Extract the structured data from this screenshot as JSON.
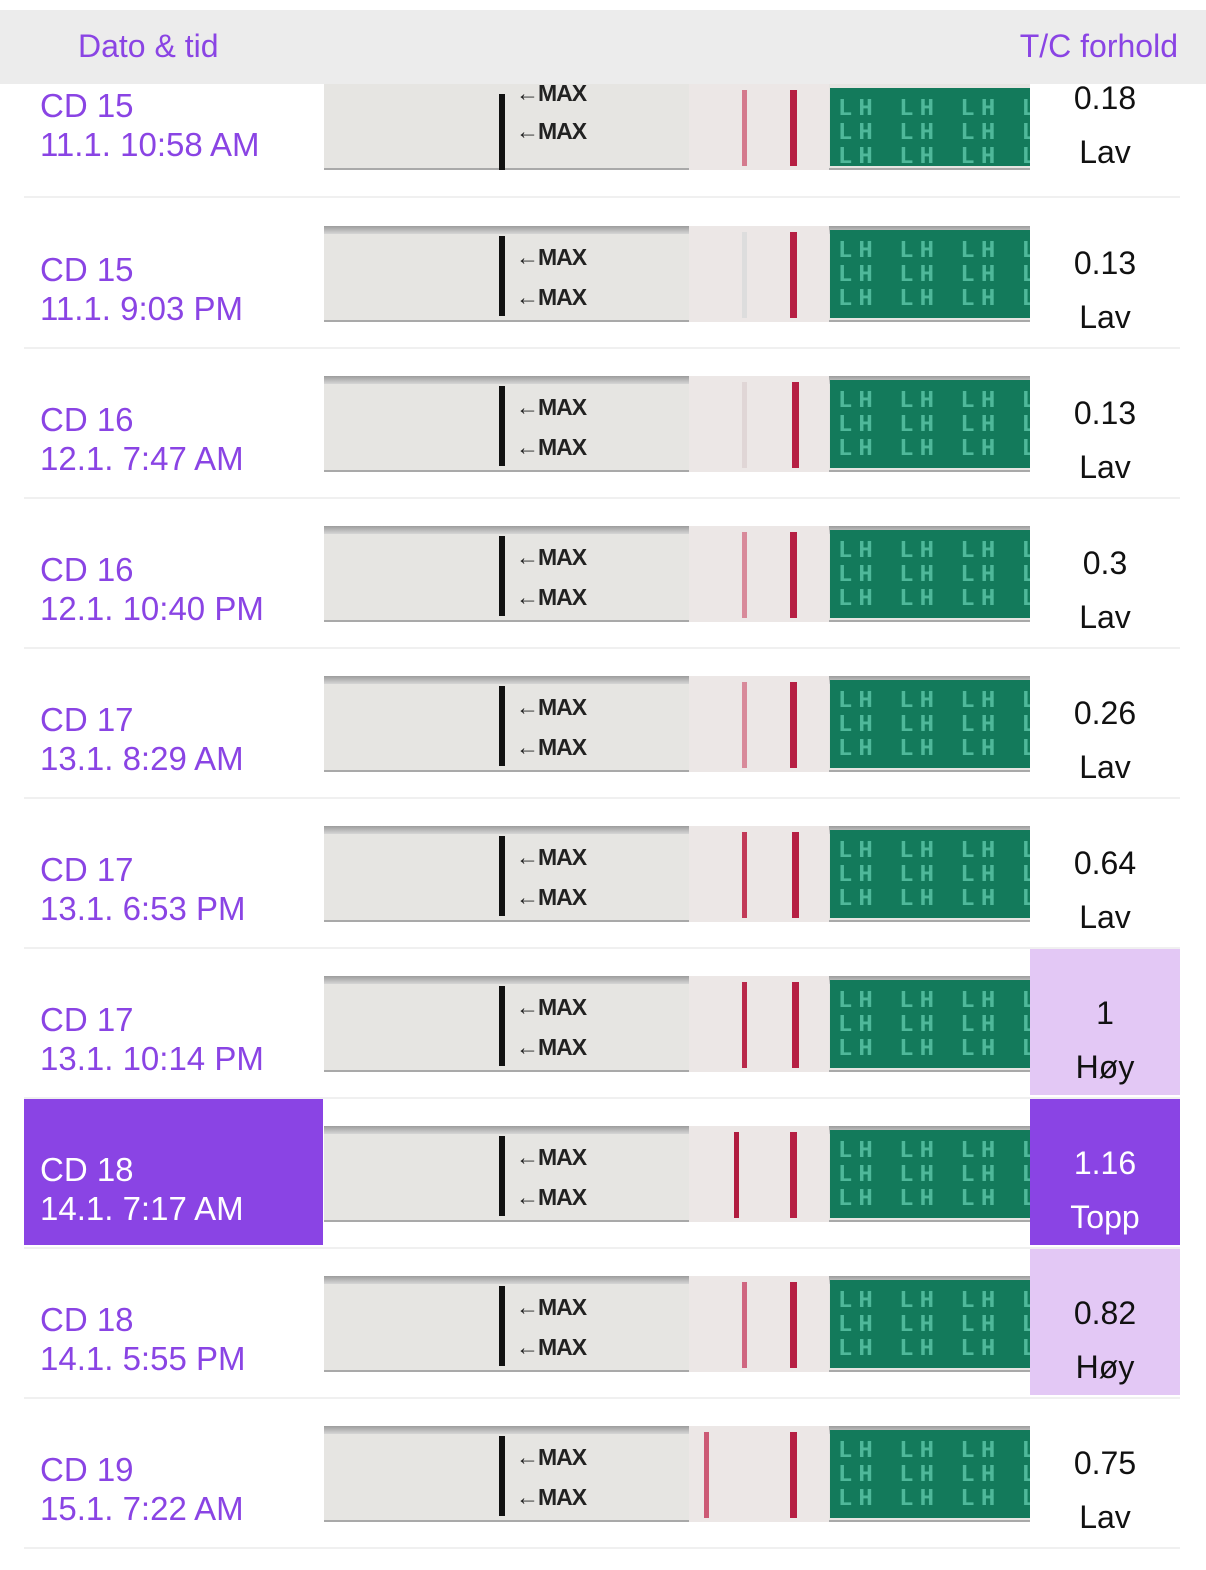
{
  "header": {
    "left_label": "Dato & tid",
    "right_label": "T/C forhold"
  },
  "colors": {
    "accent": "#8a44e4",
    "high_bg": "#e3c8f5",
    "peak_bg": "#8a44e4",
    "header_bg": "#ececec"
  },
  "strip_text": {
    "max": "←MAX",
    "brand": "LH"
  },
  "rows": [
    {
      "cd": "CD 15",
      "time": "11.1. 10:58 AM",
      "ratio": "0.18",
      "level": "Lav",
      "state": "low"
    },
    {
      "cd": "CD 15",
      "time": "11.1. 9:03 PM",
      "ratio": "0.13",
      "level": "Lav",
      "state": "low"
    },
    {
      "cd": "CD 16",
      "time": "12.1. 7:47 AM",
      "ratio": "0.13",
      "level": "Lav",
      "state": "low"
    },
    {
      "cd": "CD 16",
      "time": "12.1. 10:40 PM",
      "ratio": "0.3",
      "level": "Lav",
      "state": "low"
    },
    {
      "cd": "CD 17",
      "time": "13.1. 8:29 AM",
      "ratio": "0.26",
      "level": "Lav",
      "state": "low"
    },
    {
      "cd": "CD 17",
      "time": "13.1. 6:53 PM",
      "ratio": "0.64",
      "level": "Lav",
      "state": "low"
    },
    {
      "cd": "CD 17",
      "time": "13.1. 10:14 PM",
      "ratio": "1",
      "level": "Høy",
      "state": "high"
    },
    {
      "cd": "CD 18",
      "time": "14.1. 7:17 AM",
      "ratio": "1.16",
      "level": "Topp",
      "state": "peak"
    },
    {
      "cd": "CD 18",
      "time": "14.1. 5:55 PM",
      "ratio": "0.82",
      "level": "Høy",
      "state": "high"
    },
    {
      "cd": "CD 19",
      "time": "15.1. 7:22 AM",
      "ratio": "0.75",
      "level": "Lav",
      "state": "low"
    }
  ]
}
